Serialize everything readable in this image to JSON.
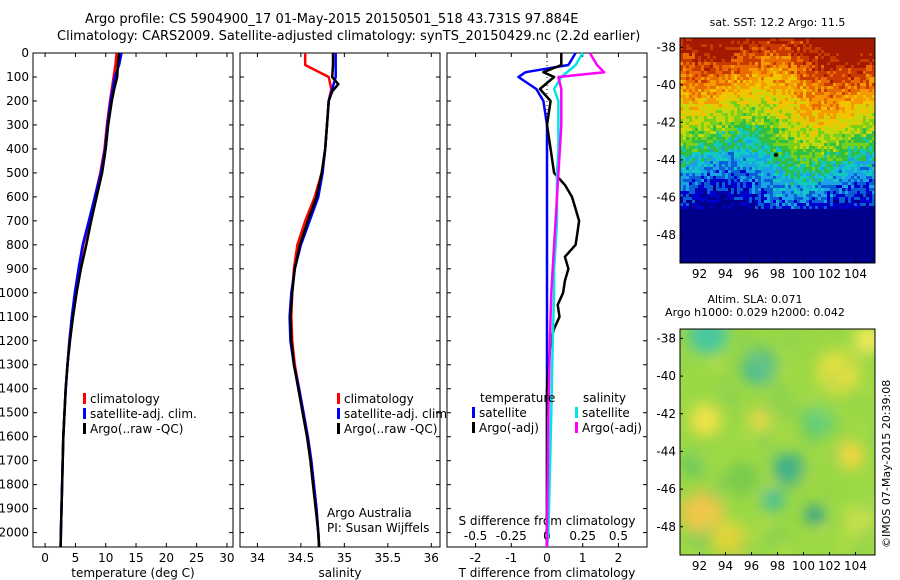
{
  "header": {
    "line1": "Argo profile: CS 5904900_17 01-May-2015 20150501_518 43.731S 97.884E",
    "line2": "Climatology: CARS2009. Satellite-adjusted climatology: synTS_20150429.nc (2.2d earlier)"
  },
  "colors": {
    "climatology": "#ff0000",
    "satellite": "#0000ff",
    "argo": "#000000",
    "satellite_s": "#00e5e5",
    "argo_s_adj": "#ff00ff"
  },
  "chart_data": [
    {
      "type": "line",
      "xlabel": "temperature (deg C)",
      "xlim": [
        -2,
        31
      ],
      "xticks": [
        "0",
        "5",
        "10",
        "15",
        "20",
        "25",
        "30"
      ],
      "ylim": [
        0,
        2060
      ],
      "yticks": [
        "0",
        "100",
        "200",
        "300",
        "400",
        "500",
        "600",
        "700",
        "800",
        "900",
        "1000",
        "1100",
        "1200",
        "1300",
        "1400",
        "1500",
        "1600",
        "1700",
        "1800",
        "1900",
        "2000"
      ],
      "legend": [
        "climatology",
        "satellite-adj. clim.",
        "Argo(..raw -QC)"
      ],
      "series": [
        {
          "name": "climatology",
          "depth": [
            0,
            50,
            100,
            200,
            300,
            400,
            500,
            600,
            700,
            800,
            900,
            1000,
            1100,
            1200,
            1300,
            1400,
            1500,
            1600,
            1700,
            1800,
            1900,
            2000,
            2060
          ],
          "values": [
            11.8,
            11.6,
            11.3,
            10.7,
            10.2,
            9.8,
            9.1,
            8.2,
            7.3,
            6.3,
            5.6,
            5.0,
            4.5,
            4.0,
            3.7,
            3.4,
            3.2,
            3.0,
            2.9,
            2.8,
            2.7,
            2.6,
            2.55
          ]
        },
        {
          "name": "satellite-adj. clim.",
          "depth": [
            0,
            50,
            100,
            200,
            300,
            400,
            500,
            600,
            700,
            800,
            900,
            1000,
            1100,
            1200,
            1300,
            1400,
            1500,
            1600,
            1700,
            1800,
            1900,
            2000,
            2060
          ],
          "values": [
            12.6,
            12.2,
            11.5,
            10.8,
            10.3,
            9.9,
            9.2,
            8.2,
            7.2,
            6.2,
            5.5,
            4.9,
            4.4,
            4.0,
            3.7,
            3.4,
            3.2,
            3.0,
            2.9,
            2.8,
            2.7,
            2.6,
            2.55
          ]
        },
        {
          "name": "Argo(..raw -QC)",
          "depth": [
            0,
            50,
            100,
            150,
            200,
            300,
            400,
            500,
            600,
            700,
            800,
            900,
            1000,
            1100,
            1200,
            1300,
            1400,
            1500,
            1600,
            1700,
            1800,
            1900,
            2000,
            2060
          ],
          "values": [
            12.2,
            12.0,
            11.9,
            11.4,
            11.0,
            10.4,
            10.0,
            9.4,
            8.5,
            7.6,
            6.8,
            5.9,
            5.2,
            4.6,
            4.1,
            3.7,
            3.4,
            3.2,
            3.0,
            2.9,
            2.8,
            2.7,
            2.6,
            2.55
          ]
        }
      ]
    },
    {
      "type": "line",
      "xlabel": "salinity",
      "xlim": [
        33.8,
        36.1
      ],
      "xticks": [
        "34",
        "34.5",
        "35",
        "35.5",
        "36"
      ],
      "ylim": [
        0,
        2060
      ],
      "legend": [
        "climatology",
        "satellite-adj. clim.",
        "Argo(..raw -QC)"
      ],
      "annotation": [
        "Argo Australia",
        "PI: Susan Wijffels"
      ],
      "series": [
        {
          "name": "climatology",
          "depth": [
            0,
            50,
            100,
            150,
            200,
            300,
            400,
            500,
            600,
            700,
            800,
            900,
            1000,
            1100,
            1200,
            1300,
            1400,
            1500,
            1600,
            1700,
            1800,
            1900,
            2000,
            2060
          ],
          "values": [
            34.55,
            34.55,
            34.82,
            34.85,
            34.82,
            34.8,
            34.78,
            34.74,
            34.66,
            34.55,
            34.46,
            34.42,
            34.4,
            34.39,
            34.4,
            34.43,
            34.48,
            34.53,
            34.58,
            34.62,
            34.65,
            34.68,
            34.7,
            34.71
          ]
        },
        {
          "name": "satellite-adj. clim.",
          "depth": [
            0,
            50,
            100,
            150,
            200,
            300,
            400,
            500,
            600,
            700,
            800,
            900,
            1000,
            1100,
            1200,
            1300,
            1400,
            1500,
            1600,
            1700,
            1800,
            1900,
            2000,
            2060
          ],
          "values": [
            34.9,
            34.9,
            34.9,
            34.86,
            34.82,
            34.8,
            34.78,
            34.75,
            34.7,
            34.6,
            34.5,
            34.43,
            34.39,
            34.37,
            34.38,
            34.42,
            34.48,
            34.53,
            34.58,
            34.62,
            34.65,
            34.68,
            34.7,
            34.71
          ]
        },
        {
          "name": "Argo(..raw -QC)",
          "depth": [
            0,
            50,
            100,
            130,
            160,
            200,
            300,
            400,
            500,
            600,
            700,
            800,
            900,
            1000,
            1100,
            1200,
            1300,
            1400,
            1500,
            1600,
            1700,
            1800,
            1900,
            2000,
            2060
          ],
          "values": [
            34.87,
            34.87,
            34.86,
            34.93,
            34.86,
            34.82,
            34.8,
            34.78,
            34.74,
            34.68,
            34.58,
            34.49,
            34.43,
            34.4,
            34.38,
            34.39,
            34.42,
            34.47,
            34.52,
            34.57,
            34.61,
            34.64,
            34.67,
            34.7,
            34.71
          ]
        }
      ]
    },
    {
      "type": "line",
      "xlabel": "T difference from climatology",
      "xlabel_top": "S difference from climatology",
      "xlim": [
        -2.8,
        2.8
      ],
      "xticks": [
        "-2",
        "-1",
        "0",
        "1",
        "2"
      ],
      "xticks_top": [
        "-0.5",
        "-0.25",
        "0",
        "0.25",
        "0.5"
      ],
      "ylim": [
        0,
        2060
      ],
      "legend_temperature": {
        "title": "temperature",
        "items": [
          "satellite",
          "Argo(-adj)"
        ]
      },
      "legend_salinity": {
        "title": "salinity",
        "items": [
          "satellite",
          "Argo(-adj)"
        ]
      },
      "series": [
        {
          "name": "T satellite",
          "depth": [
            0,
            50,
            80,
            100,
            150,
            200,
            300,
            400,
            500,
            600,
            700,
            800,
            900,
            1000,
            1200,
            1500,
            2000,
            2060
          ],
          "values": [
            0.8,
            0.6,
            -0.6,
            -0.8,
            -0.3,
            -0.1,
            0,
            0,
            0,
            0,
            0,
            0,
            0,
            0,
            0,
            0,
            0,
            0
          ]
        },
        {
          "name": "T Argo(-adj)",
          "depth": [
            0,
            50,
            80,
            100,
            150,
            200,
            300,
            400,
            500,
            550,
            600,
            650,
            700,
            750,
            800,
            850,
            900,
            950,
            1000,
            1050,
            1100,
            1150,
            1200,
            1300,
            1400,
            1500,
            1600,
            1800,
            2000,
            2060
          ],
          "values": [
            0.4,
            0.4,
            -0.1,
            0.2,
            -0.2,
            0.1,
            0,
            0.1,
            0.2,
            0.5,
            0.7,
            0.8,
            0.9,
            0.85,
            0.8,
            0.5,
            0.6,
            0.5,
            0.45,
            0.3,
            0.35,
            0.2,
            0.1,
            0.05,
            0,
            0,
            0,
            0,
            0,
            0
          ]
        },
        {
          "name": "S satellite",
          "depth": [
            0,
            50,
            100,
            150,
            200,
            300,
            400,
            500,
            600,
            700,
            800,
            900,
            1000,
            1200,
            1500,
            2000,
            2060
          ],
          "values": [
            0.25,
            0.2,
            0.1,
            0.05,
            0.08,
            0.08,
            0.08,
            0.07,
            0.07,
            0.07,
            0.06,
            0.05,
            0.05,
            0.04,
            0.03,
            0.01,
            0.0
          ]
        },
        {
          "name": "S Argo(-adj)",
          "depth": [
            0,
            50,
            80,
            100,
            150,
            200,
            300,
            400,
            500,
            600,
            700,
            800,
            900,
            1000,
            1200,
            1500,
            2000,
            2060
          ],
          "values": [
            0.3,
            0.35,
            0.4,
            0.08,
            0.1,
            0.1,
            0.1,
            0.09,
            0.08,
            0.07,
            0.06,
            0.05,
            0.04,
            0.03,
            0.02,
            0.01,
            0.0,
            0.0
          ]
        }
      ]
    },
    {
      "type": "heatmap",
      "title": "sat. SST: 12.2  Argo: 11.5",
      "xticks": [
        "92",
        "94",
        "96",
        "98",
        "100",
        "102",
        "104"
      ],
      "yticks": [
        "-38",
        "-40",
        "-42",
        "-44",
        "-46",
        "-48"
      ],
      "xlim": [
        90.5,
        105.5
      ],
      "ylim": [
        -49.5,
        -37.5
      ]
    },
    {
      "type": "heatmap",
      "title_lines": [
        "Altim. SLA: 0.071",
        "Argo h1000: 0.029 h2000: 0.042"
      ],
      "xticks": [
        "92",
        "94",
        "96",
        "98",
        "100",
        "102",
        "104"
      ],
      "yticks": [
        "-38",
        "-40",
        "-42",
        "-44",
        "-46",
        "-48"
      ],
      "xlim": [
        90.5,
        105.5
      ],
      "ylim": [
        -49.5,
        -37.5
      ]
    }
  ],
  "footer": {
    "imos": "©IMOS 07-May-2015 20:39:08"
  }
}
